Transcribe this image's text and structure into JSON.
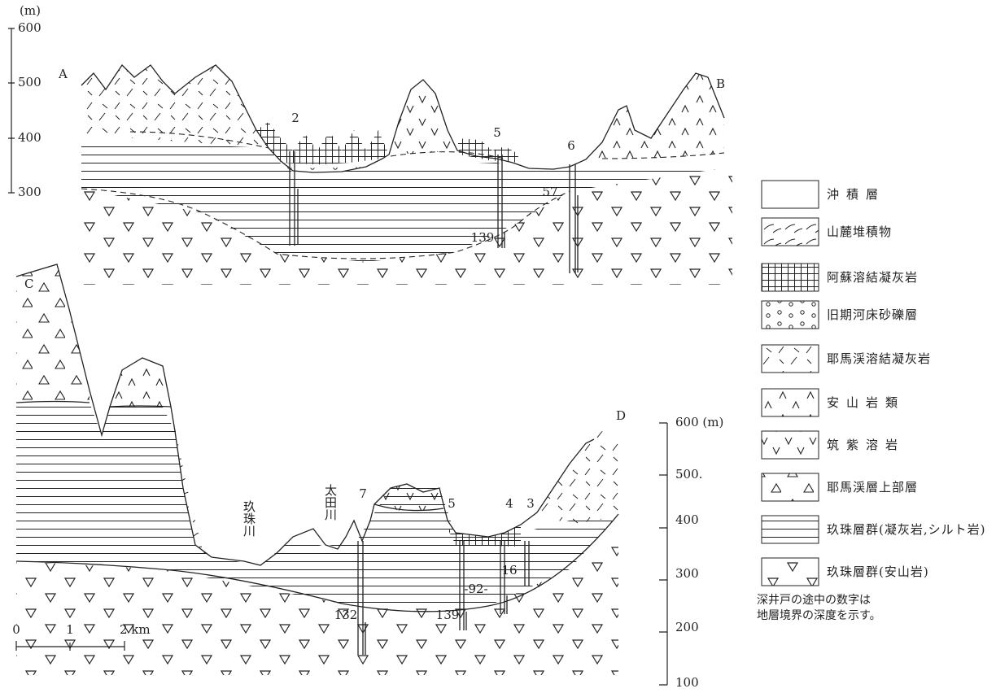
{
  "top_section": {
    "start_label": "A",
    "end_label": "B",
    "axis_unit": "(m)",
    "axis_ticks": [
      "600",
      "500",
      "400",
      "300"
    ],
    "well_labels": [
      "2",
      "5",
      "6"
    ],
    "depth_labels": [
      "57",
      "139"
    ]
  },
  "bottom_section": {
    "start_label": "C",
    "end_label": "D",
    "axis_ticks": [
      "600 (m)",
      "500.",
      "400",
      "300",
      "200",
      "100"
    ],
    "rivers": [
      "玖珠川",
      "太田川"
    ],
    "well_labels": [
      "7",
      "5",
      "4",
      "3"
    ],
    "depth_labels": [
      "132",
      "139",
      "-92-",
      "16"
    ],
    "scale_labels": [
      "0",
      "1",
      "2 km"
    ]
  },
  "legend": {
    "items": [
      "沖積層",
      "山麓堆積物",
      "阿蘇溶結凝灰岩",
      "旧期河床砂礫層",
      "耶馬渓溶結凝灰岩",
      "安山岩類",
      "筑紫溶岩",
      "耶馬渓層上部層",
      "玖珠層群(凝灰岩,シルト岩)",
      "玖珠層群(安山岩)"
    ],
    "note": [
      "深井戸の途中の数字は",
      "地層境界の深度を示す。"
    ]
  }
}
